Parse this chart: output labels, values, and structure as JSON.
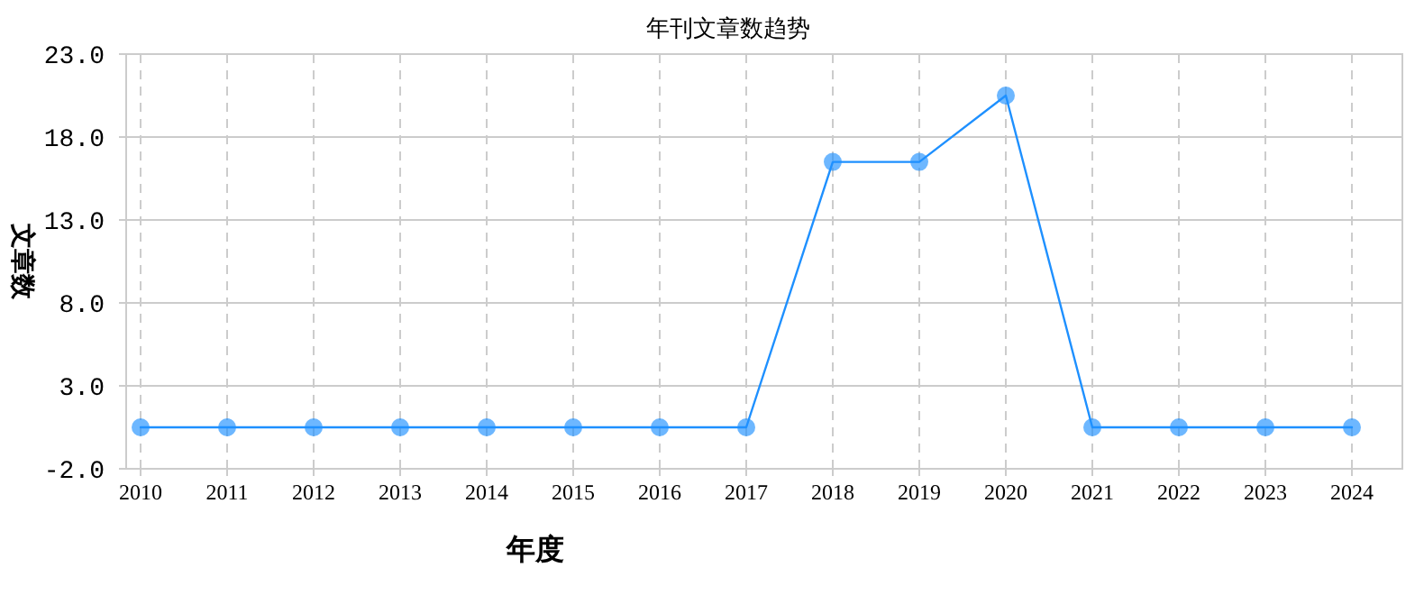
{
  "chart_data": {
    "type": "line",
    "title": "年刊文章数趋势",
    "xlabel": "年度",
    "ylabel": "文章数",
    "categories": [
      "2010",
      "2011",
      "2012",
      "2013",
      "2014",
      "2015",
      "2016",
      "2017",
      "2018",
      "2019",
      "2020",
      "2021",
      "2022",
      "2023",
      "2024"
    ],
    "series": [
      {
        "color": "#1e90ff",
        "values": [
          0.5,
          0.5,
          0.5,
          0.5,
          0.5,
          0.5,
          0.5,
          0.5,
          16.5,
          16.5,
          20.5,
          0.5,
          0.5,
          0.5,
          0.5
        ]
      }
    ],
    "ylim": [
      -2,
      23
    ],
    "yticks": [
      {
        "value": -2,
        "label": "-2.0"
      },
      {
        "value": 3,
        "label": "3.0"
      },
      {
        "value": 8,
        "label": "8.0"
      },
      {
        "value": 13,
        "label": "13.0"
      },
      {
        "value": 18,
        "label": "18.0"
      },
      {
        "value": 23,
        "label": "23.0"
      }
    ],
    "grid": true,
    "marker": "circle"
  }
}
